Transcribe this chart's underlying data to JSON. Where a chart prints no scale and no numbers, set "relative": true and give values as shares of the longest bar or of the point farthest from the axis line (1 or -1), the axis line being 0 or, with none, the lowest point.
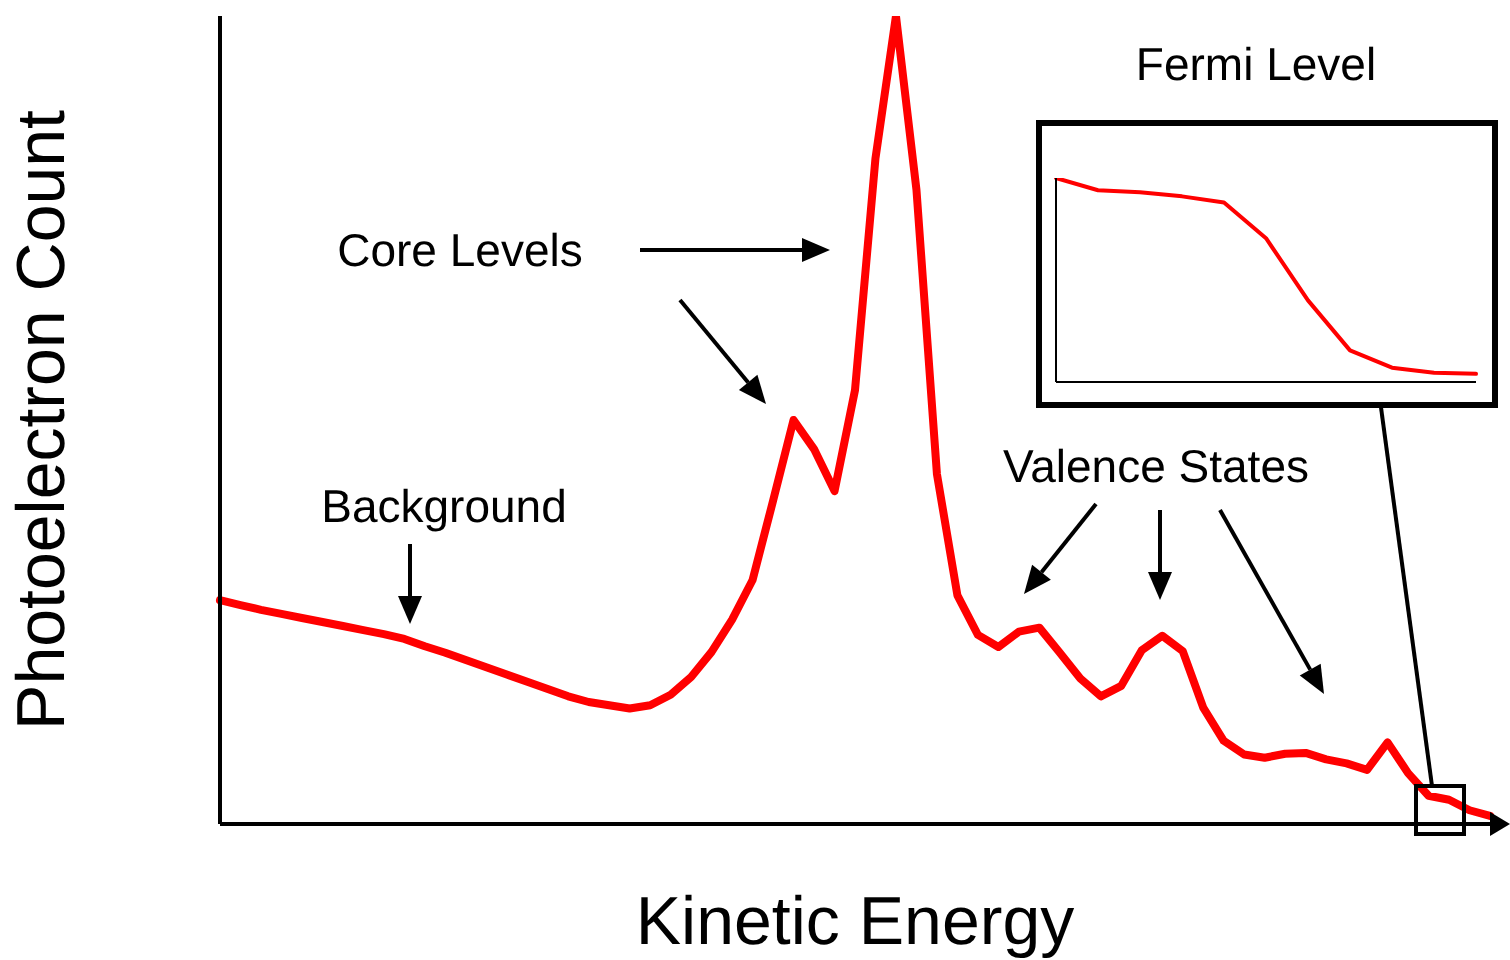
{
  "chart_data": [
    {
      "type": "line",
      "xlabel": "Kinetic Energy",
      "ylabel": "Photoelectron Count",
      "relative": true,
      "marker": "none",
      "line_style": "solid",
      "categories": [
        null,
        null,
        null,
        null,
        null,
        null,
        null,
        null,
        null,
        null,
        null,
        null,
        null,
        null,
        null,
        null,
        null,
        null,
        null,
        null,
        null,
        null,
        null,
        null,
        null,
        null,
        null,
        null,
        null,
        null,
        null,
        null,
        null,
        null,
        null,
        null,
        null,
        null,
        null,
        null,
        null,
        null,
        null,
        null,
        null,
        null,
        null,
        null,
        null,
        null,
        null,
        null,
        null,
        null,
        null,
        null,
        null,
        null,
        null,
        null,
        null,
        null,
        null
      ],
      "annotations": [
        "Core Levels",
        "Background",
        "Valence States"
      ],
      "series": [
        {
          "color": "#ff0000",
          "values": [
            0.277,
            0.271,
            0.265,
            0.26,
            0.255,
            0.25,
            0.245,
            0.24,
            0.235,
            0.229,
            0.22,
            0.212,
            0.203,
            0.194,
            0.185,
            0.176,
            0.167,
            0.158,
            0.151,
            0.147,
            0.143,
            0.147,
            0.16,
            0.182,
            0.213,
            0.253,
            0.302,
            0.4,
            0.5,
            0.464,
            0.412,
            0.537,
            0.824,
            1,
            0.785,
            0.433,
            0.283,
            0.234,
            0.219,
            0.238,
            0.243,
            0.212,
            0.18,
            0.158,
            0.171,
            0.215,
            0.233,
            0.214,
            0.144,
            0.103,
            0.086,
            0.082,
            0.087,
            0.088,
            0.08,
            0.075,
            0.067,
            0.101,
            0.063,
            0.035,
            0.03,
            0.017,
            0.01
          ]
        }
      ]
    },
    {
      "type": "line",
      "title": "Fermi Level",
      "relative": true,
      "marker": "none",
      "line_style": "solid",
      "categories": [
        null,
        null,
        null,
        null,
        null,
        null,
        null,
        null,
        null,
        null,
        null
      ],
      "series": [
        {
          "color": "#ff0000",
          "values": [
            1,
            0.94,
            0.93,
            0.91,
            0.88,
            0.705,
            0.4,
            0.155,
            0.07,
            0.045,
            0.04
          ]
        }
      ]
    }
  ]
}
